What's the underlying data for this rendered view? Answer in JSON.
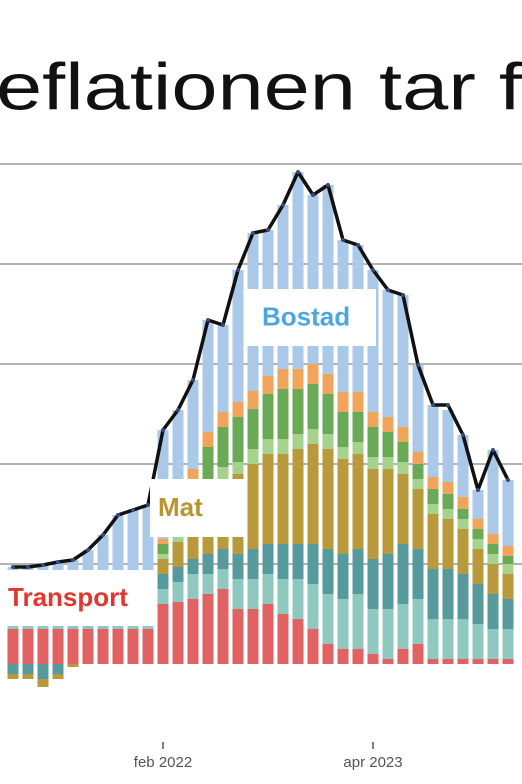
{
  "chart_data": {
    "type": "bar",
    "title": "eflationen tar f",
    "categories": [
      null,
      null,
      null,
      null,
      null,
      null,
      null,
      null,
      null,
      null,
      "feb 2022",
      null,
      null,
      null,
      null,
      null,
      null,
      null,
      null,
      null,
      null,
      null,
      null,
      null,
      "apr 2023",
      null,
      null,
      null,
      null,
      null,
      null,
      null,
      null,
      null
    ],
    "ylim": [
      -0.86,
      5.14
    ],
    "yticks": [
      1,
      2,
      3,
      4,
      5
    ],
    "grid": true,
    "stacked": true,
    "series": [
      {
        "name": "Transport",
        "color": "#e06262",
        "values": [
          0.35,
          0.35,
          0.35,
          0.35,
          0.35,
          0.35,
          0.35,
          0.35,
          0.35,
          0.35,
          0.6,
          0.62,
          0.65,
          0.7,
          0.75,
          0.55,
          0.55,
          0.6,
          0.5,
          0.45,
          0.35,
          0.2,
          0.15,
          0.15,
          0.1,
          0.05,
          0.15,
          0.2,
          0.05,
          0.05,
          0.05,
          0.05,
          0.05,
          0.05
        ]
      },
      {
        "color": "#8fc8bf",
        "values": [
          0.1,
          0.1,
          0.1,
          0.1,
          0.1,
          0.12,
          0.12,
          0.15,
          0.15,
          0.15,
          0.15,
          0.2,
          0.25,
          0.2,
          0.2,
          0.3,
          0.3,
          0.3,
          0.35,
          0.4,
          0.45,
          0.5,
          0.5,
          0.55,
          0.45,
          0.5,
          0.45,
          0.45,
          0.4,
          0.4,
          0.4,
          0.35,
          0.3,
          0.3
        ]
      },
      {
        "color": "#569a9d",
        "values": [
          -0.1,
          -0.1,
          -0.15,
          -0.1,
          0.05,
          0.05,
          0.08,
          0.1,
          0.1,
          0.1,
          0.15,
          0.15,
          0.15,
          0.2,
          0.2,
          0.25,
          0.3,
          0.3,
          0.35,
          0.35,
          0.4,
          0.45,
          0.45,
          0.45,
          0.5,
          0.55,
          0.6,
          0.5,
          0.5,
          0.5,
          0.45,
          0.4,
          0.35,
          0.3
        ]
      },
      {
        "name": "Mat",
        "color": "#b8993b",
        "values": [
          -0.05,
          -0.05,
          -0.08,
          -0.05,
          -0.03,
          0.02,
          0.03,
          0.05,
          0.05,
          0.08,
          0.15,
          0.25,
          0.4,
          0.6,
          0.7,
          0.8,
          0.85,
          0.9,
          0.9,
          0.95,
          1.0,
          1.0,
          0.95,
          0.95,
          0.9,
          0.85,
          0.7,
          0.6,
          0.55,
          0.5,
          0.45,
          0.35,
          0.3,
          0.25
        ]
      },
      {
        "color": "#a5d28c",
        "values": [
          0.03,
          0.03,
          0.03,
          0.03,
          0.03,
          0.03,
          0.03,
          0.05,
          0.05,
          0.05,
          0.05,
          0.08,
          0.1,
          0.12,
          0.12,
          0.12,
          0.15,
          0.15,
          0.15,
          0.15,
          0.15,
          0.15,
          0.12,
          0.12,
          0.12,
          0.12,
          0.12,
          0.1,
          0.1,
          0.1,
          0.1,
          0.1,
          0.1,
          0.1
        ]
      },
      {
        "color": "#6aaa56",
        "values": [
          0.02,
          0.02,
          0.02,
          0.02,
          0.02,
          0.02,
          0.02,
          0.03,
          0.03,
          0.05,
          0.1,
          0.15,
          0.3,
          0.35,
          0.4,
          0.45,
          0.4,
          0.45,
          0.5,
          0.45,
          0.45,
          0.4,
          0.35,
          0.3,
          0.3,
          0.25,
          0.2,
          0.15,
          0.15,
          0.15,
          0.1,
          0.1,
          0.1,
          0.08
        ]
      },
      {
        "color": "#f0a55a",
        "values": [
          0.02,
          0.02,
          0.02,
          0.02,
          0.02,
          0.02,
          0.02,
          0.02,
          0.02,
          0.03,
          0.05,
          0.08,
          0.1,
          0.15,
          0.15,
          0.15,
          0.18,
          0.18,
          0.2,
          0.2,
          0.2,
          0.2,
          0.2,
          0.2,
          0.15,
          0.15,
          0.15,
          0.12,
          0.12,
          0.12,
          0.12,
          0.1,
          0.1,
          0.1
        ]
      },
      {
        "name": "Bostad",
        "color": "#aac9e8",
        "values": [
          0.45,
          0.45,
          0.47,
          0.5,
          0.47,
          0.53,
          0.64,
          0.74,
          0.79,
          0.78,
          1.09,
          1.01,
          0.89,
          1.12,
          0.87,
          1.32,
          1.58,
          1.46,
          1.64,
          1.97,
          1.69,
          1.89,
          1.52,
          1.47,
          1.42,
          1.27,
          1.32,
          0.87,
          0.72,
          0.72,
          0.62,
          0.29,
          0.84,
          0.66
        ]
      },
      {
        "type": "line",
        "color": "#111111",
        "values": [
          0.97,
          0.97,
          0.99,
          1.02,
          1.04,
          1.14,
          1.29,
          1.49,
          1.54,
          1.59,
          2.34,
          2.54,
          2.84,
          3.44,
          3.39,
          3.94,
          4.31,
          4.34,
          4.59,
          4.92,
          4.69,
          4.79,
          4.24,
          4.19,
          3.94,
          3.74,
          3.69,
          2.99,
          2.59,
          2.59,
          2.29,
          1.74,
          2.14,
          1.84
        ]
      }
    ]
  }
}
